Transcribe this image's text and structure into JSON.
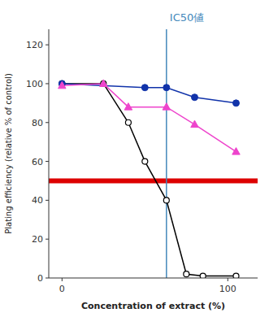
{
  "chart_data": {
    "type": "line",
    "title": "IC50値",
    "x_label": "Concentration of extract (%)",
    "y_label": "Plating efficiency (relative % of control)",
    "xlim": [
      -8,
      118
    ],
    "ylim": [
      0,
      128
    ],
    "xticks": [
      0,
      100
    ],
    "yticks": [
      0,
      20,
      40,
      60,
      80,
      100,
      120
    ],
    "grid": false,
    "hlines": [
      {
        "y": 50,
        "color": "#DD0000"
      }
    ],
    "vlines": [
      {
        "x": 63,
        "color": "#4488BB"
      }
    ],
    "series": [
      {
        "x": [
          0,
          25,
          40,
          50,
          63,
          75,
          85,
          105
        ],
        "values": [
          100,
          100,
          80,
          60,
          40,
          2,
          1,
          1
        ],
        "color": "#000000",
        "marker": "open-circle"
      },
      {
        "x": [
          0,
          50,
          63,
          80,
          105
        ],
        "values": [
          100,
          98,
          98,
          93,
          90
        ],
        "color": "#1133AA",
        "marker": "circle"
      },
      {
        "x": [
          0,
          25,
          40,
          63,
          80,
          105
        ],
        "values": [
          99,
          100,
          88,
          88,
          79,
          65
        ],
        "color": "#EE44CC",
        "marker": "triangle"
      }
    ]
  }
}
